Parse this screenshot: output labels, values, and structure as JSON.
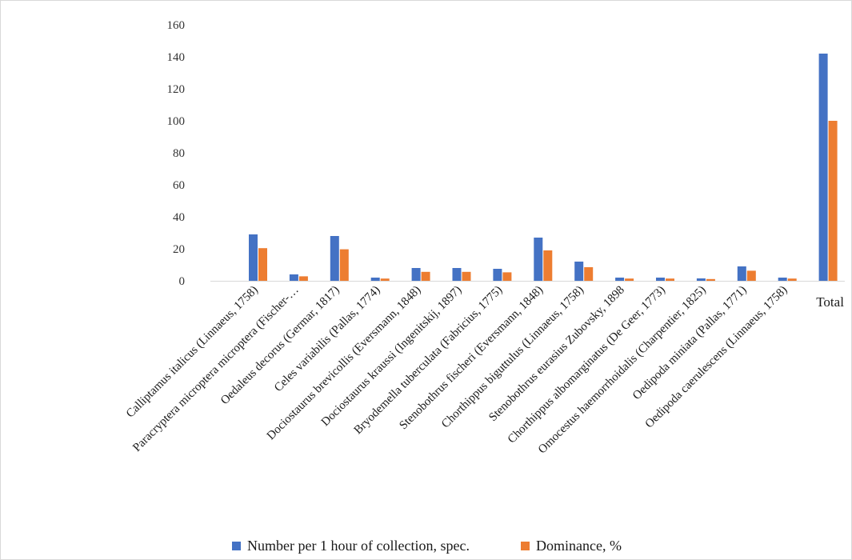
{
  "chart_data": {
    "type": "bar",
    "categories": [
      "Calliptamus italicus (Linnaeus, 1758)",
      "Paracryptera microptera microptera (Fischer-…",
      "Oedaleus decorus (Germar, 1817)",
      "Celes variabilis (Pallas, 1774)",
      "Dociostaurus brevicollis (Eversmann, 1848)",
      "Dociostaurus kraussi (Ingenitskij, 1897)",
      "Bryodemella tuberculata (Fabricius, 1775)",
      "Stenobothrus fischeri (Eversmann, 1848)",
      "Chorthippus biguttulus (Linnaeus, 1758)",
      "Stenobothrus eurasius Zubovsky, 1898",
      "Chorthippus albomarginatus (De Geer, 1773)",
      "Omocestus haemorrhoidalis (Charpentier, 1825)",
      "Oedipoda miniata (Pallas, 1771)",
      "Oedipoda caerulescens (Linnaeus, 1758)",
      "Total"
    ],
    "series": [
      {
        "name": "Number per 1 hour of collection, spec.",
        "color": "#4472C4",
        "values": [
          29,
          4,
          28,
          2,
          8,
          8,
          7.5,
          27,
          12,
          2,
          2,
          1.5,
          9,
          2,
          142
        ]
      },
      {
        "name": "Dominance, %",
        "color": "#ED7D31",
        "values": [
          20.4,
          2.8,
          19.7,
          1.4,
          5.6,
          5.6,
          5.3,
          19,
          8.5,
          1.4,
          1.4,
          1.1,
          6.3,
          1.4,
          100
        ]
      }
    ],
    "ylim": [
      0,
      160
    ],
    "yticks": [
      "0",
      "20",
      "40",
      "60",
      "80",
      "100",
      "120",
      "140",
      "160"
    ],
    "grid": false,
    "legend_position": "bottom"
  }
}
